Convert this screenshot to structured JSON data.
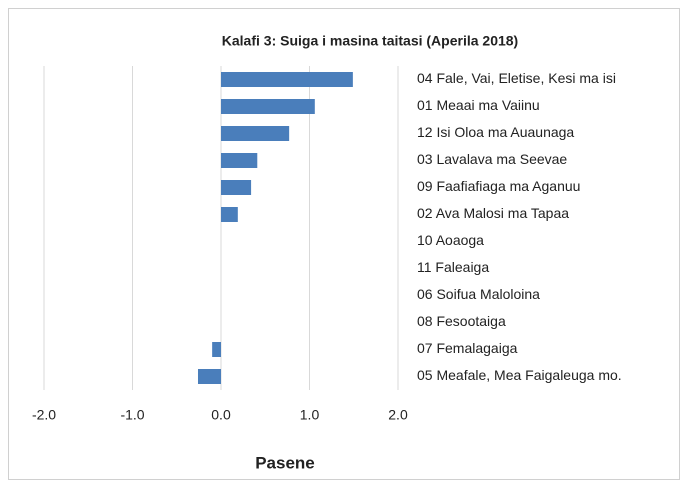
{
  "chart_data": {
    "type": "barh",
    "title": "Kalafi 3: Suiga i masina taitasi  (Aperila 2018)",
    "xlabel": "Pasene",
    "categories": [
      "04 Fale, Vai, Eletise, Kesi ma isi",
      "01 Meaai ma Vaiinu",
      "12 Isi Oloa ma Auaunaga",
      "03 Lavalava ma Seevae",
      "09 Faafiafiaga ma Aganuu",
      "02 Ava Malosi ma Tapaa",
      "10 Aoaoga",
      "11 Faleaiga",
      "06 Soifua Maloloina",
      "08 Fesootaiga",
      "07 Femalagaiga",
      "05 Meafale, Mea Faigaleuga mo."
    ],
    "values": [
      1.49,
      1.06,
      0.77,
      0.41,
      0.34,
      0.19,
      0,
      0,
      0,
      0,
      -0.1,
      -0.26
    ],
    "color": "#4a7ebb",
    "xlim": [
      -2,
      2
    ],
    "xticks": [
      {
        "value": -2,
        "label": "-2.0"
      },
      {
        "value": -1,
        "label": "-1.0"
      },
      {
        "value": 0,
        "label": "0.0"
      },
      {
        "value": 1,
        "label": "1.0"
      },
      {
        "value": 2,
        "label": "2.0"
      }
    ],
    "grid": true
  }
}
